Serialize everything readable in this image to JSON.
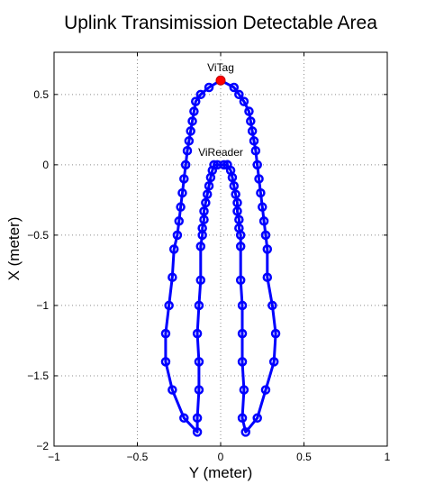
{
  "chart_data": {
    "type": "line",
    "title": "Uplink Transimission Detectable Area",
    "xlabel": "Y (meter)",
    "ylabel": "X (meter)",
    "xlim": [
      -1,
      1
    ],
    "ylim": [
      -2,
      0.8
    ],
    "xticks": [
      -1,
      -0.5,
      0,
      0.5,
      1
    ],
    "xtick_labels": [
      "−1",
      "−0.5",
      "0",
      "0.5",
      "1"
    ],
    "yticks": [
      -2,
      -1.5,
      -1,
      -0.5,
      0,
      0.5
    ],
    "ytick_labels": [
      "−2",
      "−1.5",
      "−1",
      "−0.5",
      "0",
      "0.5"
    ],
    "grid": true,
    "series": [
      {
        "color": "#0000ff",
        "marker": "circle",
        "points": [
          [
            0.04,
            0.0
          ],
          [
            0.06,
            -0.04
          ],
          [
            0.07,
            -0.09
          ],
          [
            0.08,
            -0.15
          ],
          [
            0.09,
            -0.21
          ],
          [
            0.1,
            -0.27
          ],
          [
            0.1,
            -0.33
          ],
          [
            0.11,
            -0.39
          ],
          [
            0.11,
            -0.45
          ],
          [
            0.12,
            -0.5
          ],
          [
            0.12,
            -0.58
          ],
          [
            0.12,
            -0.82
          ],
          [
            0.13,
            -1.0
          ],
          [
            0.13,
            -1.2
          ],
          [
            0.13,
            -1.4
          ],
          [
            0.14,
            -1.6
          ],
          [
            0.13,
            -1.8
          ],
          [
            0.15,
            -1.9
          ],
          [
            0.22,
            -1.8
          ],
          [
            0.27,
            -1.6
          ],
          [
            0.32,
            -1.4
          ],
          [
            0.33,
            -1.2
          ],
          [
            0.31,
            -1.0
          ],
          [
            0.28,
            -0.8
          ],
          [
            0.28,
            -0.6
          ],
          [
            0.27,
            -0.5
          ],
          [
            0.26,
            -0.4
          ],
          [
            0.25,
            -0.3
          ],
          [
            0.24,
            -0.2
          ],
          [
            0.23,
            -0.1
          ],
          [
            0.22,
            0.0
          ],
          [
            0.21,
            0.1
          ],
          [
            0.2,
            0.17
          ],
          [
            0.19,
            0.24
          ],
          [
            0.18,
            0.31
          ],
          [
            0.17,
            0.38
          ],
          [
            0.14,
            0.45
          ],
          [
            0.11,
            0.5
          ],
          [
            0.08,
            0.55
          ],
          [
            0.0,
            0.6
          ],
          [
            -0.07,
            0.55
          ],
          [
            -0.12,
            0.5
          ],
          [
            -0.15,
            0.45
          ],
          [
            -0.16,
            0.38
          ],
          [
            -0.17,
            0.31
          ],
          [
            -0.18,
            0.24
          ],
          [
            -0.19,
            0.17
          ],
          [
            -0.2,
            0.1
          ],
          [
            -0.21,
            0.0
          ],
          [
            -0.22,
            -0.1
          ],
          [
            -0.23,
            -0.2
          ],
          [
            -0.24,
            -0.3
          ],
          [
            -0.25,
            -0.4
          ],
          [
            -0.26,
            -0.5
          ],
          [
            -0.28,
            -0.6
          ],
          [
            -0.29,
            -0.8
          ],
          [
            -0.31,
            -1.0
          ],
          [
            -0.33,
            -1.2
          ],
          [
            -0.33,
            -1.4
          ],
          [
            -0.29,
            -1.6
          ],
          [
            -0.22,
            -1.8
          ],
          [
            -0.14,
            -1.9
          ],
          [
            -0.14,
            -1.8
          ],
          [
            -0.13,
            -1.6
          ],
          [
            -0.13,
            -1.4
          ],
          [
            -0.14,
            -1.2
          ],
          [
            -0.13,
            -1.0
          ],
          [
            -0.12,
            -0.82
          ],
          [
            -0.12,
            -0.58
          ],
          [
            -0.11,
            -0.5
          ],
          [
            -0.11,
            -0.45
          ],
          [
            -0.1,
            -0.39
          ],
          [
            -0.1,
            -0.33
          ],
          [
            -0.09,
            -0.27
          ],
          [
            -0.08,
            -0.21
          ],
          [
            -0.07,
            -0.15
          ],
          [
            -0.06,
            -0.09
          ],
          [
            -0.05,
            -0.04
          ],
          [
            -0.04,
            0.0
          ],
          [
            -0.02,
            0.0
          ],
          [
            0.02,
            0.0
          ],
          [
            0.04,
            0.0
          ]
        ]
      }
    ],
    "annotations": [
      {
        "text": "ViTag",
        "x": 0.0,
        "y": 0.6,
        "marker_color": "#ff0000"
      },
      {
        "text": "ViReader",
        "x": 0.0,
        "y": 0.0
      }
    ]
  }
}
